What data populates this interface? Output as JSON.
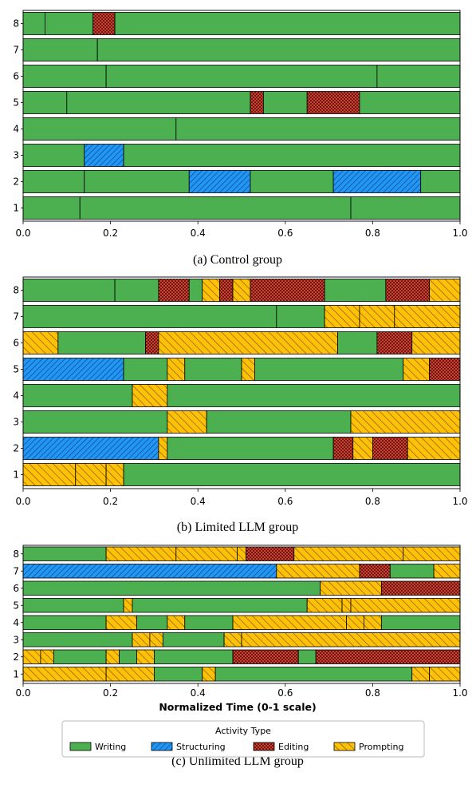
{
  "colors": {
    "Writing": "#4caf50",
    "Structuring": "#2196f3",
    "Editing": "#e74c3c",
    "Prompting": "#ffc107"
  },
  "legend": {
    "title": "Activity Type",
    "items": [
      "Writing",
      "Structuring",
      "Editing",
      "Prompting"
    ]
  },
  "xlabel": "Normalized Time (0-1 scale)",
  "chart_data": [
    {
      "type": "bar",
      "title": "(a) Control group",
      "xlim": [
        0,
        1
      ],
      "xticks": [
        "0.0",
        "0.2",
        "0.4",
        "0.6",
        "0.8",
        "1.0"
      ],
      "rows": [
        {
          "label": "8",
          "segments": [
            {
              "start": 0.0,
              "end": 0.05,
              "activity": "Writing"
            },
            {
              "start": 0.05,
              "end": 0.16,
              "activity": "Writing"
            },
            {
              "start": 0.16,
              "end": 0.21,
              "activity": "Editing"
            },
            {
              "start": 0.21,
              "end": 1.0,
              "activity": "Writing"
            }
          ]
        },
        {
          "label": "7",
          "segments": [
            {
              "start": 0.0,
              "end": 0.17,
              "activity": "Writing"
            },
            {
              "start": 0.17,
              "end": 1.0,
              "activity": "Writing"
            }
          ]
        },
        {
          "label": "6",
          "segments": [
            {
              "start": 0.0,
              "end": 0.19,
              "activity": "Writing"
            },
            {
              "start": 0.19,
              "end": 0.81,
              "activity": "Writing"
            },
            {
              "start": 0.81,
              "end": 1.0,
              "activity": "Writing"
            }
          ]
        },
        {
          "label": "5",
          "segments": [
            {
              "start": 0.0,
              "end": 0.1,
              "activity": "Writing"
            },
            {
              "start": 0.1,
              "end": 0.52,
              "activity": "Writing"
            },
            {
              "start": 0.52,
              "end": 0.55,
              "activity": "Editing"
            },
            {
              "start": 0.55,
              "end": 0.65,
              "activity": "Writing"
            },
            {
              "start": 0.65,
              "end": 0.77,
              "activity": "Editing"
            },
            {
              "start": 0.77,
              "end": 1.0,
              "activity": "Writing"
            }
          ]
        },
        {
          "label": "4",
          "segments": [
            {
              "start": 0.0,
              "end": 0.35,
              "activity": "Writing"
            },
            {
              "start": 0.35,
              "end": 1.0,
              "activity": "Writing"
            }
          ]
        },
        {
          "label": "3",
          "segments": [
            {
              "start": 0.0,
              "end": 0.14,
              "activity": "Writing"
            },
            {
              "start": 0.14,
              "end": 0.23,
              "activity": "Structuring"
            },
            {
              "start": 0.23,
              "end": 1.0,
              "activity": "Writing"
            }
          ]
        },
        {
          "label": "2",
          "segments": [
            {
              "start": 0.0,
              "end": 0.14,
              "activity": "Writing"
            },
            {
              "start": 0.14,
              "end": 0.38,
              "activity": "Writing"
            },
            {
              "start": 0.38,
              "end": 0.52,
              "activity": "Structuring"
            },
            {
              "start": 0.52,
              "end": 0.71,
              "activity": "Writing"
            },
            {
              "start": 0.71,
              "end": 0.91,
              "activity": "Structuring"
            },
            {
              "start": 0.91,
              "end": 1.0,
              "activity": "Writing"
            }
          ]
        },
        {
          "label": "1",
          "segments": [
            {
              "start": 0.0,
              "end": 0.13,
              "activity": "Writing"
            },
            {
              "start": 0.13,
              "end": 0.75,
              "activity": "Writing"
            },
            {
              "start": 0.75,
              "end": 1.0,
              "activity": "Writing"
            }
          ]
        }
      ]
    },
    {
      "type": "bar",
      "title": "(b) Limited LLM group",
      "xlim": [
        0,
        1
      ],
      "xticks": [
        "0.0",
        "0.2",
        "0.4",
        "0.6",
        "0.8",
        "1.0"
      ],
      "rows": [
        {
          "label": "8",
          "segments": [
            {
              "start": 0.0,
              "end": 0.21,
              "activity": "Writing"
            },
            {
              "start": 0.21,
              "end": 0.31,
              "activity": "Writing"
            },
            {
              "start": 0.31,
              "end": 0.38,
              "activity": "Editing"
            },
            {
              "start": 0.38,
              "end": 0.41,
              "activity": "Writing"
            },
            {
              "start": 0.41,
              "end": 0.45,
              "activity": "Prompting"
            },
            {
              "start": 0.45,
              "end": 0.48,
              "activity": "Editing"
            },
            {
              "start": 0.48,
              "end": 0.52,
              "activity": "Prompting"
            },
            {
              "start": 0.52,
              "end": 0.69,
              "activity": "Editing"
            },
            {
              "start": 0.69,
              "end": 0.83,
              "activity": "Writing"
            },
            {
              "start": 0.83,
              "end": 0.93,
              "activity": "Editing"
            },
            {
              "start": 0.93,
              "end": 1.0,
              "activity": "Prompting"
            }
          ]
        },
        {
          "label": "7",
          "segments": [
            {
              "start": 0.0,
              "end": 0.58,
              "activity": "Writing"
            },
            {
              "start": 0.58,
              "end": 0.69,
              "activity": "Writing"
            },
            {
              "start": 0.69,
              "end": 0.77,
              "activity": "Prompting"
            },
            {
              "start": 0.77,
              "end": 0.85,
              "activity": "Prompting"
            },
            {
              "start": 0.85,
              "end": 1.0,
              "activity": "Prompting"
            }
          ]
        },
        {
          "label": "6",
          "segments": [
            {
              "start": 0.0,
              "end": 0.08,
              "activity": "Prompting"
            },
            {
              "start": 0.08,
              "end": 0.28,
              "activity": "Writing"
            },
            {
              "start": 0.28,
              "end": 0.31,
              "activity": "Editing"
            },
            {
              "start": 0.31,
              "end": 0.72,
              "activity": "Prompting"
            },
            {
              "start": 0.72,
              "end": 0.81,
              "activity": "Writing"
            },
            {
              "start": 0.81,
              "end": 0.89,
              "activity": "Editing"
            },
            {
              "start": 0.89,
              "end": 1.0,
              "activity": "Prompting"
            }
          ]
        },
        {
          "label": "5",
          "segments": [
            {
              "start": 0.0,
              "end": 0.23,
              "activity": "Structuring"
            },
            {
              "start": 0.23,
              "end": 0.33,
              "activity": "Writing"
            },
            {
              "start": 0.33,
              "end": 0.37,
              "activity": "Prompting"
            },
            {
              "start": 0.37,
              "end": 0.5,
              "activity": "Writing"
            },
            {
              "start": 0.5,
              "end": 0.53,
              "activity": "Prompting"
            },
            {
              "start": 0.53,
              "end": 0.87,
              "activity": "Writing"
            },
            {
              "start": 0.87,
              "end": 0.93,
              "activity": "Prompting"
            },
            {
              "start": 0.93,
              "end": 1.0,
              "activity": "Editing"
            }
          ]
        },
        {
          "label": "4",
          "segments": [
            {
              "start": 0.0,
              "end": 0.25,
              "activity": "Writing"
            },
            {
              "start": 0.25,
              "end": 0.33,
              "activity": "Prompting"
            },
            {
              "start": 0.33,
              "end": 1.0,
              "activity": "Writing"
            }
          ]
        },
        {
          "label": "3",
          "segments": [
            {
              "start": 0.0,
              "end": 0.33,
              "activity": "Writing"
            },
            {
              "start": 0.33,
              "end": 0.42,
              "activity": "Prompting"
            },
            {
              "start": 0.42,
              "end": 0.75,
              "activity": "Writing"
            },
            {
              "start": 0.75,
              "end": 1.0,
              "activity": "Prompting"
            }
          ]
        },
        {
          "label": "2",
          "segments": [
            {
              "start": 0.0,
              "end": 0.31,
              "activity": "Structuring"
            },
            {
              "start": 0.31,
              "end": 0.33,
              "activity": "Prompting"
            },
            {
              "start": 0.33,
              "end": 0.71,
              "activity": "Writing"
            },
            {
              "start": 0.71,
              "end": 0.755,
              "activity": "Editing"
            },
            {
              "start": 0.755,
              "end": 0.8,
              "activity": "Prompting"
            },
            {
              "start": 0.8,
              "end": 0.88,
              "activity": "Editing"
            },
            {
              "start": 0.88,
              "end": 1.0,
              "activity": "Prompting"
            }
          ]
        },
        {
          "label": "1",
          "segments": [
            {
              "start": 0.0,
              "end": 0.12,
              "activity": "Prompting"
            },
            {
              "start": 0.12,
              "end": 0.19,
              "activity": "Prompting"
            },
            {
              "start": 0.19,
              "end": 0.23,
              "activity": "Prompting"
            },
            {
              "start": 0.23,
              "end": 1.0,
              "activity": "Writing"
            }
          ]
        }
      ]
    },
    {
      "type": "bar",
      "title": "(c) Unlimited LLM group",
      "xlim": [
        0,
        1
      ],
      "xticks": [
        "0.0",
        "0.2",
        "0.4",
        "0.6",
        "0.8",
        "1.0"
      ],
      "rows": [
        {
          "label": "8",
          "segments": [
            {
              "start": 0.0,
              "end": 0.19,
              "activity": "Writing"
            },
            {
              "start": 0.19,
              "end": 0.35,
              "activity": "Prompting"
            },
            {
              "start": 0.35,
              "end": 0.49,
              "activity": "Prompting"
            },
            {
              "start": 0.49,
              "end": 0.51,
              "activity": "Prompting"
            },
            {
              "start": 0.51,
              "end": 0.62,
              "activity": "Editing"
            },
            {
              "start": 0.62,
              "end": 0.87,
              "activity": "Prompting"
            },
            {
              "start": 0.87,
              "end": 1.0,
              "activity": "Prompting"
            }
          ]
        },
        {
          "label": "7",
          "segments": [
            {
              "start": 0.0,
              "end": 0.58,
              "activity": "Structuring"
            },
            {
              "start": 0.58,
              "end": 0.77,
              "activity": "Prompting"
            },
            {
              "start": 0.77,
              "end": 0.84,
              "activity": "Editing"
            },
            {
              "start": 0.84,
              "end": 0.94,
              "activity": "Writing"
            },
            {
              "start": 0.94,
              "end": 1.0,
              "activity": "Prompting"
            }
          ]
        },
        {
          "label": "6",
          "segments": [
            {
              "start": 0.0,
              "end": 0.68,
              "activity": "Writing"
            },
            {
              "start": 0.68,
              "end": 0.82,
              "activity": "Prompting"
            },
            {
              "start": 0.82,
              "end": 1.0,
              "activity": "Editing"
            }
          ]
        },
        {
          "label": "5",
          "segments": [
            {
              "start": 0.0,
              "end": 0.23,
              "activity": "Writing"
            },
            {
              "start": 0.23,
              "end": 0.25,
              "activity": "Prompting"
            },
            {
              "start": 0.25,
              "end": 0.65,
              "activity": "Writing"
            },
            {
              "start": 0.65,
              "end": 0.73,
              "activity": "Prompting"
            },
            {
              "start": 0.73,
              "end": 0.75,
              "activity": "Prompting"
            },
            {
              "start": 0.75,
              "end": 1.0,
              "activity": "Prompting"
            }
          ]
        },
        {
          "label": "4",
          "segments": [
            {
              "start": 0.0,
              "end": 0.19,
              "activity": "Writing"
            },
            {
              "start": 0.19,
              "end": 0.26,
              "activity": "Prompting"
            },
            {
              "start": 0.26,
              "end": 0.33,
              "activity": "Writing"
            },
            {
              "start": 0.33,
              "end": 0.37,
              "activity": "Prompting"
            },
            {
              "start": 0.37,
              "end": 0.48,
              "activity": "Writing"
            },
            {
              "start": 0.48,
              "end": 0.74,
              "activity": "Prompting"
            },
            {
              "start": 0.74,
              "end": 0.78,
              "activity": "Prompting"
            },
            {
              "start": 0.78,
              "end": 0.82,
              "activity": "Prompting"
            },
            {
              "start": 0.82,
              "end": 1.0,
              "activity": "Writing"
            }
          ]
        },
        {
          "label": "3",
          "segments": [
            {
              "start": 0.0,
              "end": 0.25,
              "activity": "Writing"
            },
            {
              "start": 0.25,
              "end": 0.29,
              "activity": "Prompting"
            },
            {
              "start": 0.29,
              "end": 0.32,
              "activity": "Prompting"
            },
            {
              "start": 0.32,
              "end": 0.46,
              "activity": "Writing"
            },
            {
              "start": 0.46,
              "end": 0.5,
              "activity": "Prompting"
            },
            {
              "start": 0.5,
              "end": 1.0,
              "activity": "Prompting"
            }
          ]
        },
        {
          "label": "2",
          "segments": [
            {
              "start": 0.0,
              "end": 0.04,
              "activity": "Prompting"
            },
            {
              "start": 0.04,
              "end": 0.07,
              "activity": "Prompting"
            },
            {
              "start": 0.07,
              "end": 0.19,
              "activity": "Writing"
            },
            {
              "start": 0.19,
              "end": 0.22,
              "activity": "Prompting"
            },
            {
              "start": 0.22,
              "end": 0.26,
              "activity": "Writing"
            },
            {
              "start": 0.26,
              "end": 0.3,
              "activity": "Prompting"
            },
            {
              "start": 0.3,
              "end": 0.48,
              "activity": "Writing"
            },
            {
              "start": 0.48,
              "end": 0.63,
              "activity": "Editing"
            },
            {
              "start": 0.63,
              "end": 0.67,
              "activity": "Writing"
            },
            {
              "start": 0.67,
              "end": 1.0,
              "activity": "Editing"
            }
          ]
        },
        {
          "label": "1",
          "segments": [
            {
              "start": 0.0,
              "end": 0.19,
              "activity": "Prompting"
            },
            {
              "start": 0.19,
              "end": 0.3,
              "activity": "Prompting"
            },
            {
              "start": 0.3,
              "end": 0.41,
              "activity": "Writing"
            },
            {
              "start": 0.41,
              "end": 0.44,
              "activity": "Prompting"
            },
            {
              "start": 0.44,
              "end": 0.89,
              "activity": "Writing"
            },
            {
              "start": 0.89,
              "end": 0.93,
              "activity": "Prompting"
            },
            {
              "start": 0.93,
              "end": 1.0,
              "activity": "Prompting"
            }
          ]
        }
      ]
    }
  ]
}
